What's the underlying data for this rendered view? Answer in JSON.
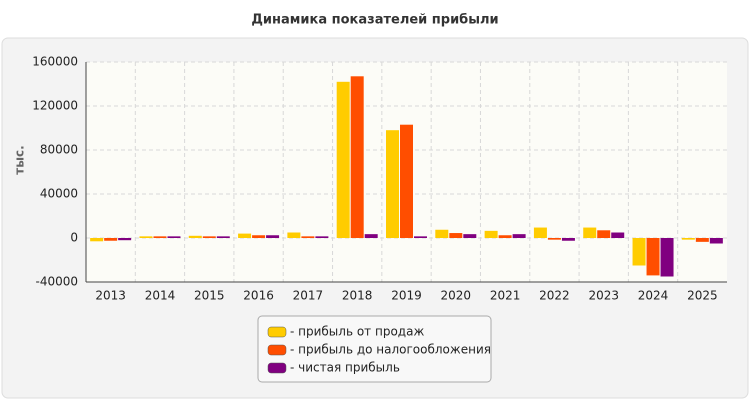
{
  "chart_data": {
    "type": "bar",
    "title": "Динамика показателей прибыли",
    "y_label": "тыс.",
    "categories": [
      "2013",
      "2014",
      "2015",
      "2016",
      "2017",
      "2018",
      "2019",
      "2020",
      "2021",
      "2022",
      "2023",
      "2024",
      "2025"
    ],
    "series": [
      {
        "name": "- прибыль от продаж",
        "color": "#ffcc00",
        "values": [
          -3000,
          1500,
          2000,
          4000,
          5000,
          142000,
          98000,
          7500,
          6500,
          9500,
          9500,
          -25000,
          -1500
        ]
      },
      {
        "name": "- прибыль до налогообложения",
        "color": "#ff4e00",
        "values": [
          -2500,
          1500,
          1500,
          2500,
          1500,
          147000,
          103000,
          4500,
          2500,
          -1500,
          7000,
          -34000,
          -3500
        ]
      },
      {
        "name": "- чистая прибыль",
        "color": "#800080",
        "values": [
          -2000,
          1500,
          1500,
          2500,
          1500,
          3500,
          1500,
          3500,
          3500,
          -2500,
          5000,
          -35000,
          -5000
        ]
      }
    ],
    "ylim": [
      -40000,
      160000
    ],
    "yticks": [
      -40000,
      0,
      40000,
      80000,
      120000,
      160000
    ],
    "grid": true
  }
}
